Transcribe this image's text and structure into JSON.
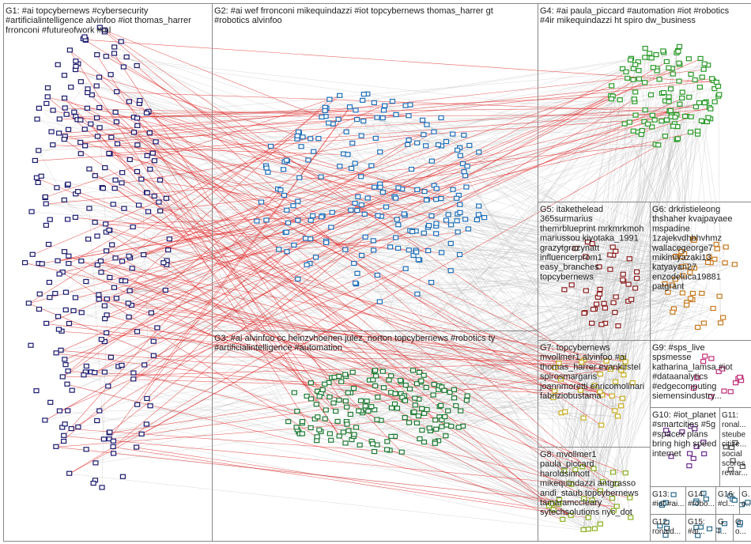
{
  "groups": [
    {
      "lines": [
        "G1: #ai topcybernews #cybersecurity",
        "#artificialintelligence alvinfoo #iot thomas_harrer",
        "frronconi #futureofwork #ml"
      ]
    },
    {
      "lines": [
        "G2: #ai wef frronconi mikequindazzi #iot topcybernews thomas_harrer gt",
        "#robotics alvinfoo"
      ]
    },
    {
      "lines": [
        "G3: #ai alvinfoo cc heinzvhoenen julez_norton topcybernews #robotics ty",
        "#artificialintelligence #automation"
      ]
    },
    {
      "lines": [
        "G4: #ai paula_piccard #automation #iot #robotics",
        "#4ir mikequindazzi ht spiro dw_business"
      ]
    },
    {
      "lines": [
        "G5: itakethelead",
        "365surmarius",
        "themrblueprint mrkmrkmoh",
        "mariussou kiyotaka_1991",
        "grazytgrazynatt",
        "influencerprom1",
        "easy_branches",
        "topcybernews"
      ]
    },
    {
      "lines": [
        "G6: drkristieleong",
        "thshaher kvajpayaee",
        "mspadine",
        "1zajekvdhbhvhmz",
        "wallacegeorge7",
        "mikimiyazaki13",
        "katyayan27",
        "enzodeluca19881",
        "patgrant"
      ]
    },
    {
      "lines": [
        "G7: topcybernews",
        "mvollmer1 alvinfoo #ai",
        "thomas_harrer evankirstel",
        "spirosmargaris",
        "joannmoretti enricomolinari",
        "fabriziobustama"
      ]
    },
    {
      "lines": [
        "G9: #sps_live",
        "spsmesse",
        "katharina_lamsa #iot",
        "#dataanalytics",
        "#edgecomputing",
        "siemensindustry..."
      ]
    },
    {
      "lines": [
        "G10: #iot_planet",
        "#smartcities #5g",
        "#spacex plans",
        "bring high speed",
        "internet"
      ]
    },
    {
      "lines": [
        "G11:",
        "ronal...",
        "steube",
        "citize...",
        "social",
        "scores",
        "rewar..."
      ]
    },
    {
      "lines": [
        "G8: mvollmer1",
        "paula_piccard",
        "haroldsinnott",
        "mikequindazzi antgrasso",
        "andi_staub topcybernews",
        "tamaramccleary",
        "sytechsolutions nyc_dot"
      ]
    },
    {
      "lines": [
        "G13:",
        "#iot #ai..."
      ]
    },
    {
      "lines": [
        "G14:",
        "#robo..."
      ]
    },
    {
      "lines": [
        "G16:",
        "#cl..."
      ]
    },
    {
      "lines": [
        "G.",
        "o..."
      ]
    },
    {
      "lines": [
        "G12:",
        "ronald..."
      ]
    },
    {
      "lines": [
        "G15:",
        "#ai..."
      ]
    },
    {
      "lines": [
        "G.",
        "f..."
      ]
    },
    {
      "lines": [
        "G.",
        "o..."
      ]
    }
  ]
}
